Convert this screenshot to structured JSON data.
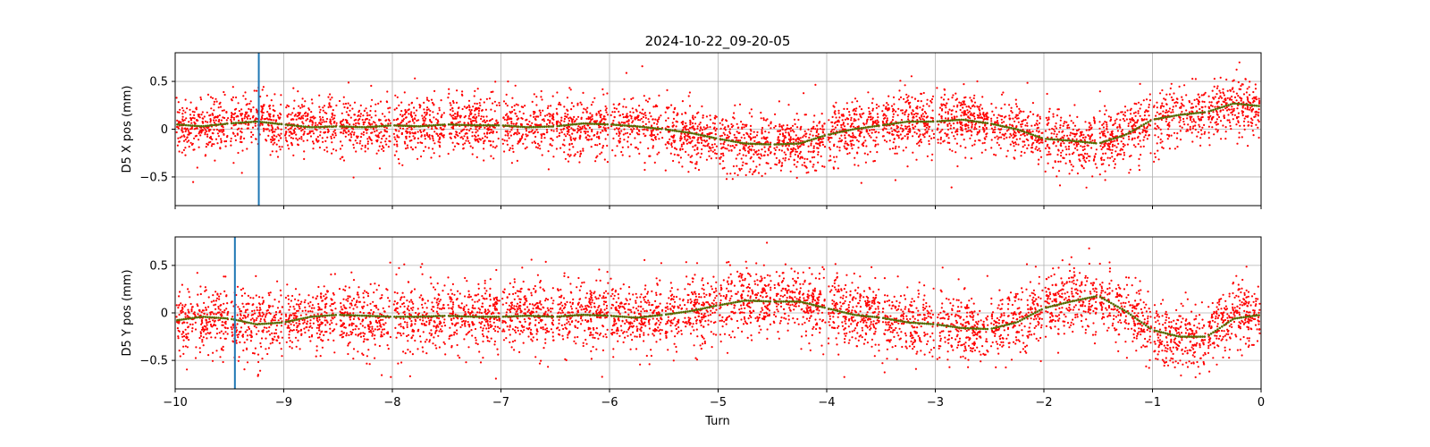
{
  "title": "2024-10-22_09-20-05",
  "xlabel": "Turn",
  "colors": {
    "points": "#ff0000",
    "trend": "#556b00",
    "marker": "#1f77b4",
    "grid": "#b0b0b0",
    "axes": "#000000"
  },
  "chart_data": [
    {
      "type": "scatter",
      "ylabel": "D5 X pos (mm)",
      "xlim": [
        -10,
        0
      ],
      "ylim": [
        -0.8,
        0.8
      ],
      "x_ticks": [
        -10,
        -9,
        -8,
        -7,
        -6,
        -5,
        -4,
        -3,
        -2,
        -1,
        0
      ],
      "y_ticks": [
        -0.5,
        0.0,
        0.5
      ],
      "grid": true,
      "marker_line_x": -9.23,
      "point_spread_sd": 0.15,
      "gap_width": 0.025,
      "trend": {
        "x": [
          -10,
          -9.75,
          -9.5,
          -9.25,
          -9,
          -8.75,
          -8.5,
          -8.25,
          -8,
          -7.75,
          -7.5,
          -7.25,
          -7,
          -6.75,
          -6.5,
          -6.25,
          -6,
          -5.75,
          -5.5,
          -5.25,
          -5,
          -4.75,
          -4.5,
          -4.25,
          -4,
          -3.75,
          -3.5,
          -3.25,
          -3,
          -2.75,
          -2.5,
          -2.25,
          -2,
          -1.75,
          -1.5,
          -1.25,
          -1,
          -0.75,
          -0.5,
          -0.25,
          0
        ],
        "y": [
          0.05,
          0.03,
          0.06,
          0.08,
          0.05,
          0.02,
          0.03,
          0.02,
          0.04,
          0.03,
          0.05,
          0.04,
          0.04,
          0.02,
          0.03,
          0.06,
          0.05,
          0.03,
          0.0,
          -0.04,
          -0.1,
          -0.15,
          -0.16,
          -0.15,
          -0.06,
          0.0,
          0.04,
          0.08,
          0.08,
          0.1,
          0.06,
          0.0,
          -0.1,
          -0.12,
          -0.15,
          -0.06,
          0.1,
          0.15,
          0.18,
          0.27,
          0.24
        ]
      }
    },
    {
      "type": "scatter",
      "ylabel": "D5 Y pos (mm)",
      "xlim": [
        -10,
        0
      ],
      "ylim": [
        -0.8,
        0.8
      ],
      "x_ticks": [
        -10,
        -9,
        -8,
        -7,
        -6,
        -5,
        -4,
        -3,
        -2,
        -1,
        0
      ],
      "y_ticks": [
        -0.5,
        0.0,
        0.5
      ],
      "grid": true,
      "marker_line_x": -9.45,
      "point_spread_sd": 0.18,
      "gap_width": 0.025,
      "trend": {
        "x": [
          -10,
          -9.75,
          -9.5,
          -9.25,
          -9,
          -8.75,
          -8.5,
          -8.25,
          -8,
          -7.75,
          -7.5,
          -7.25,
          -7,
          -6.75,
          -6.5,
          -6.25,
          -6,
          -5.75,
          -5.5,
          -5.25,
          -5,
          -4.75,
          -4.5,
          -4.25,
          -4,
          -3.75,
          -3.5,
          -3.25,
          -3,
          -2.75,
          -2.5,
          -2.25,
          -2,
          -1.75,
          -1.5,
          -1.25,
          -1,
          -0.75,
          -0.5,
          -0.25,
          0
        ],
        "y": [
          -0.08,
          -0.04,
          -0.06,
          -0.12,
          -0.1,
          -0.04,
          -0.02,
          -0.03,
          -0.04,
          -0.04,
          -0.03,
          -0.04,
          -0.04,
          -0.03,
          -0.04,
          -0.02,
          -0.03,
          -0.05,
          -0.02,
          0.02,
          0.08,
          0.13,
          0.12,
          0.12,
          0.05,
          -0.02,
          -0.05,
          -0.1,
          -0.12,
          -0.16,
          -0.17,
          -0.1,
          0.05,
          0.12,
          0.18,
          0.02,
          -0.18,
          -0.25,
          -0.25,
          -0.06,
          -0.02
        ]
      }
    }
  ]
}
